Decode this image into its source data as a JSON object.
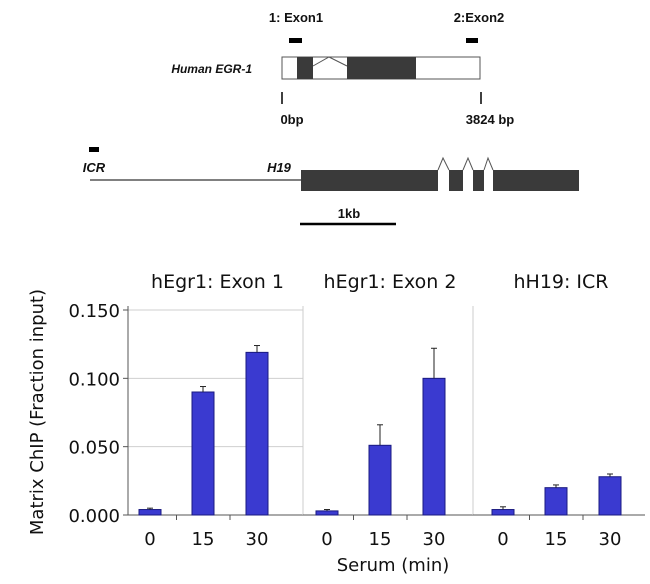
{
  "gene_diagram": {
    "egr1": {
      "gene_label": "Human EGR-1",
      "probe_labels": [
        "1: Exon1",
        "2:Exon2"
      ],
      "scale_start": "0bp",
      "scale_end": "3824 bp"
    },
    "h19": {
      "icr_label": "ICR",
      "gene_label": "H19",
      "scale_bar_label": "1kb"
    }
  },
  "colors": {
    "bar_fill": "#3a3ad0",
    "bar_stroke": "#1a1a80",
    "exon_fill": "#3a3a3a",
    "divider": "#cccccc"
  },
  "chart_data": [
    {
      "type": "bar",
      "title": "hEgr1: Exon 1",
      "categories": [
        "0",
        "15",
        "30"
      ],
      "values": [
        0.004,
        0.09,
        0.119
      ],
      "errors": [
        0.001,
        0.004,
        0.005
      ],
      "ylim": [
        0,
        0.15
      ],
      "yticks": [
        "0.000",
        "0.050",
        "0.100",
        "0.150"
      ],
      "ylabel": "Matrix ChIP (Fraction input)",
      "xlabel": ""
    },
    {
      "type": "bar",
      "title": "hEgr1: Exon 2",
      "categories": [
        "0",
        "15",
        "30"
      ],
      "values": [
        0.003,
        0.051,
        0.1
      ],
      "errors": [
        0.001,
        0.015,
        0.022
      ],
      "ylim": [
        0,
        0.15
      ],
      "xlabel": "Serum (min)"
    },
    {
      "type": "bar",
      "title": "hH19: ICR",
      "categories": [
        "0",
        "15",
        "30"
      ],
      "values": [
        0.004,
        0.02,
        0.028
      ],
      "errors": [
        0.002,
        0.002,
        0.002
      ],
      "ylim": [
        0,
        0.15
      ],
      "xlabel": ""
    }
  ]
}
